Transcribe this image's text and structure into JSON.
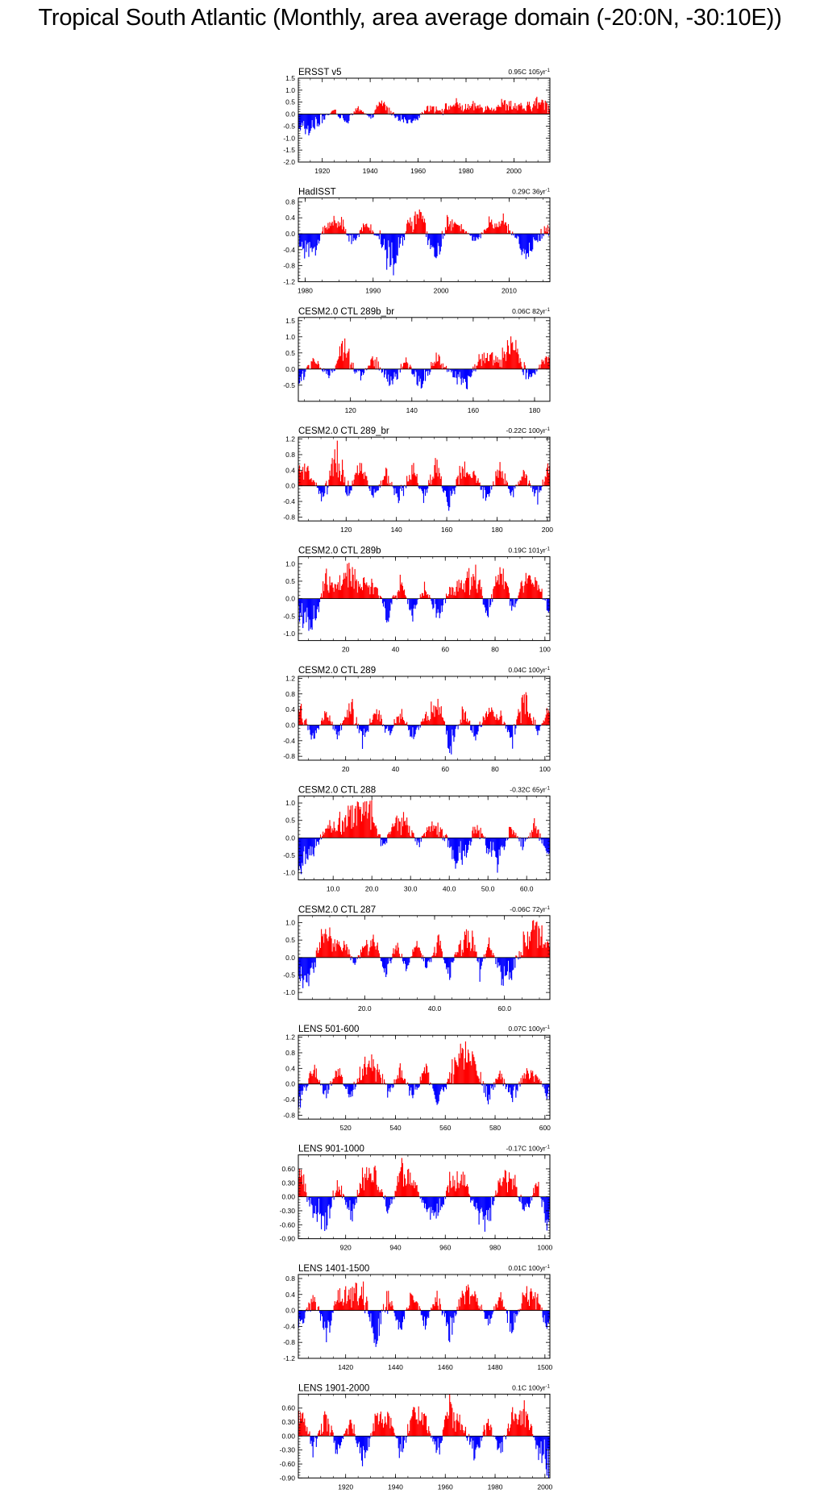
{
  "title": "Tropical South Atlantic (Monthly, area average domain (-20:0N, -30:10E))",
  "colors": {
    "positive": "#ff0000",
    "negative": "#0000ff",
    "line": "#000000"
  },
  "chart_data": [
    {
      "type": "bar",
      "title": "ERSST v5",
      "trend": "0.95C 105yr",
      "trend_unit_sup": "-1",
      "xlim": [
        1910,
        2015
      ],
      "ylim": [
        -2.0,
        1.5
      ],
      "yticks": [
        -2.0,
        -1.5,
        -1.0,
        -0.5,
        0.0,
        0.5,
        1.0,
        1.5
      ],
      "ytick_labels": [
        "-2.0",
        "-1.5",
        "-1.0",
        "-0.5",
        "0.0",
        "0.5",
        "1.0",
        "1.5"
      ],
      "xticks": [
        1920,
        1940,
        1960,
        1980,
        2000
      ],
      "xtick_labels": [
        "1920",
        "1940",
        "1960",
        "1980",
        "2000"
      ],
      "x": [
        1910,
        1915,
        1920,
        1925,
        1930,
        1935,
        1940,
        1945,
        1950,
        1955,
        1960,
        1965,
        1970,
        1975,
        1980,
        1985,
        1990,
        1995,
        2000,
        2005,
        2010,
        2015
      ],
      "values": [
        -0.5,
        -0.8,
        -0.3,
        0.2,
        -0.4,
        0.3,
        -0.2,
        0.6,
        -0.1,
        -0.3,
        -0.2,
        0.4,
        0.2,
        0.5,
        0.3,
        0.4,
        0.3,
        0.5,
        0.4,
        0.3,
        0.6,
        0.4
      ]
    },
    {
      "type": "bar",
      "title": "HadISST",
      "trend": "0.29C 36yr",
      "trend_unit_sup": "-1",
      "xlim": [
        1979,
        2016
      ],
      "ylim": [
        -1.2,
        0.9
      ],
      "yticks": [
        -1.2,
        -0.8,
        -0.4,
        0.0,
        0.4,
        0.8
      ],
      "ytick_labels": [
        "-1.2",
        "-0.8",
        "-0.4",
        "0.0",
        "0.4",
        "0.8"
      ],
      "xticks": [
        1980,
        1990,
        2000,
        2010
      ],
      "xtick_labels": [
        "1980",
        "1990",
        "2000",
        "2010"
      ],
      "x": [
        1979,
        1981,
        1983,
        1985,
        1987,
        1989,
        1991,
        1993,
        1995,
        1997,
        1999,
        2001,
        2003,
        2005,
        2007,
        2009,
        2011,
        2013,
        2015
      ],
      "values": [
        -0.3,
        -0.6,
        0.2,
        0.5,
        -0.3,
        0.3,
        -0.2,
        -0.9,
        0.2,
        0.6,
        -0.8,
        0.3,
        0.2,
        -0.3,
        0.3,
        0.4,
        -0.2,
        -0.7,
        0.1
      ]
    },
    {
      "type": "bar",
      "title": "CESM2.0 CTL 289b_br",
      "trend": "0.06C 82yr",
      "trend_unit_sup": "-1",
      "xlim": [
        103,
        185
      ],
      "ylim": [
        -1.0,
        1.6
      ],
      "yticks": [
        -0.5,
        0.0,
        0.5,
        1.0,
        1.5
      ],
      "ytick_labels": [
        "-0.5",
        "0.0",
        "0.5",
        "1.0",
        "1.5"
      ],
      "xticks": [
        120,
        140,
        160,
        180
      ],
      "xtick_labels": [
        "120",
        "140",
        "160",
        "180"
      ],
      "x": [
        103,
        108,
        113,
        118,
        123,
        128,
        133,
        138,
        143,
        148,
        153,
        158,
        163,
        168,
        173,
        178,
        183
      ],
      "values": [
        -0.6,
        0.4,
        -0.3,
        0.8,
        -0.3,
        0.4,
        -0.7,
        0.3,
        -0.6,
        0.4,
        -0.2,
        -0.5,
        0.6,
        0.3,
        1.0,
        -0.4,
        0.3
      ]
    },
    {
      "type": "bar",
      "title": "CESM2.0 CTL 289_br",
      "trend": "-0.22C 100yr",
      "trend_unit_sup": "-1",
      "xlim": [
        101,
        201
      ],
      "ylim": [
        -0.9,
        1.25
      ],
      "yticks": [
        -0.8,
        -0.4,
        0.0,
        0.4,
        0.8,
        1.2
      ],
      "ytick_labels": [
        "-0.8",
        "-0.4",
        "0.0",
        "0.4",
        "0.8",
        "1.2"
      ],
      "xticks": [
        120,
        140,
        160,
        180,
        200
      ],
      "xtick_labels": [
        "120",
        "140",
        "160",
        "180",
        "200"
      ],
      "x": [
        101,
        106,
        111,
        116,
        121,
        126,
        131,
        136,
        141,
        146,
        151,
        156,
        161,
        166,
        171,
        176,
        181,
        186,
        191,
        196,
        200
      ],
      "values": [
        0.5,
        0.3,
        -0.4,
        1.0,
        -0.2,
        0.6,
        -0.3,
        0.4,
        -0.5,
        0.6,
        -0.3,
        0.6,
        -0.6,
        0.5,
        0.3,
        -0.4,
        0.6,
        -0.3,
        0.4,
        -0.4,
        0.5
      ]
    },
    {
      "type": "bar",
      "title": "CESM2.0 CTL 289b",
      "trend": "0.19C 101yr",
      "trend_unit_sup": "-1",
      "xlim": [
        1,
        102
      ],
      "ylim": [
        -1.2,
        1.2
      ],
      "yticks": [
        -1.0,
        -0.5,
        0.0,
        0.5,
        1.0
      ],
      "ytick_labels": [
        "-1.0",
        "-0.5",
        "0.0",
        "0.5",
        "1.0"
      ],
      "xticks": [
        20,
        40,
        60,
        80,
        100
      ],
      "xtick_labels": [
        "20",
        "40",
        "60",
        "80",
        "100"
      ],
      "x": [
        2,
        7,
        12,
        17,
        22,
        27,
        32,
        37,
        42,
        47,
        52,
        57,
        62,
        67,
        72,
        77,
        82,
        87,
        92,
        97,
        101
      ],
      "values": [
        -0.5,
        -0.9,
        0.6,
        0.4,
        0.8,
        0.5,
        0.4,
        -0.6,
        0.6,
        -0.5,
        0.4,
        -0.6,
        0.3,
        0.5,
        0.9,
        -0.4,
        1.0,
        -0.4,
        0.7,
        0.5,
        -0.3
      ]
    },
    {
      "type": "bar",
      "title": "CESM2.0 CTL 289",
      "trend": "0.04C 100yr",
      "trend_unit_sup": "-1",
      "xlim": [
        1,
        102
      ],
      "ylim": [
        -0.9,
        1.25
      ],
      "yticks": [
        -0.8,
        -0.4,
        0.0,
        0.4,
        0.8,
        1.2
      ],
      "ytick_labels": [
        "-0.8",
        "-0.4",
        "0.0",
        "0.4",
        "0.8",
        "1.2"
      ],
      "xticks": [
        20,
        40,
        60,
        80,
        100
      ],
      "xtick_labels": [
        "20",
        "40",
        "60",
        "80",
        "100"
      ],
      "x": [
        2,
        7,
        12,
        17,
        22,
        27,
        32,
        37,
        42,
        47,
        52,
        57,
        62,
        67,
        72,
        77,
        82,
        87,
        92,
        97,
        101
      ],
      "values": [
        0.5,
        -0.4,
        0.4,
        -0.3,
        0.6,
        -0.5,
        0.5,
        -0.3,
        0.4,
        -0.4,
        0.2,
        0.7,
        -0.7,
        0.5,
        -0.4,
        0.5,
        0.3,
        -0.4,
        0.8,
        -0.3,
        0.4
      ]
    },
    {
      "type": "bar",
      "title": "CESM2.0 CTL 288",
      "trend": "-0.32C 65yr",
      "trend_unit_sup": "-1",
      "xlim": [
        1,
        66
      ],
      "ylim": [
        -1.2,
        1.2
      ],
      "yticks": [
        -1.0,
        -0.5,
        0.0,
        0.5,
        1.0
      ],
      "ytick_labels": [
        "-1.0",
        "-0.5",
        "0.0",
        "0.5",
        "1.0"
      ],
      "xticks": [
        10,
        20,
        30,
        40,
        50,
        60
      ],
      "xtick_labels": [
        "10.0",
        "20.0",
        "30.0",
        "40.0",
        "50.0",
        "60.0"
      ],
      "x": [
        2,
        5,
        8,
        11,
        14,
        17,
        20,
        23,
        26,
        29,
        32,
        35,
        38,
        41,
        44,
        47,
        50,
        53,
        56,
        59,
        62,
        65
      ],
      "values": [
        -0.9,
        -0.4,
        0.3,
        0.5,
        0.7,
        1.0,
        0.8,
        -0.3,
        0.6,
        0.5,
        -0.3,
        0.4,
        0.3,
        -0.6,
        -0.8,
        0.5,
        -0.4,
        -0.9,
        0.4,
        -0.3,
        0.5,
        -0.4
      ]
    },
    {
      "type": "bar",
      "title": "CESM2.0 CTL 287",
      "trend": "-0.06C 72yr",
      "trend_unit_sup": "-1",
      "xlim": [
        1,
        73
      ],
      "ylim": [
        -1.2,
        1.2
      ],
      "yticks": [
        -1.0,
        -0.5,
        0.0,
        0.5,
        1.0
      ],
      "ytick_labels": [
        "-1.0",
        "-0.5",
        "0.0",
        "0.5",
        "1.0"
      ],
      "xticks": [
        20,
        40,
        60
      ],
      "xtick_labels": [
        "20.0",
        "40.0",
        "60.0"
      ],
      "x": [
        2,
        5,
        8,
        11,
        14,
        17,
        20,
        23,
        26,
        29,
        32,
        35,
        38,
        41,
        44,
        47,
        50,
        53,
        56,
        59,
        62,
        65,
        68,
        71
      ],
      "values": [
        -0.8,
        -0.5,
        0.8,
        0.5,
        0.6,
        -0.3,
        0.4,
        0.6,
        -0.5,
        0.4,
        -0.3,
        0.5,
        -0.4,
        0.6,
        -0.6,
        0.4,
        0.9,
        -0.5,
        0.6,
        -0.7,
        -0.6,
        0.4,
        0.9,
        0.6
      ]
    },
    {
      "type": "bar",
      "title": "LENS 501-600",
      "trend": "0.07C 100yr",
      "trend_unit_sup": "-1",
      "xlim": [
        501,
        602
      ],
      "ylim": [
        -0.9,
        1.25
      ],
      "yticks": [
        -0.8,
        -0.4,
        0.0,
        0.4,
        0.8,
        1.2
      ],
      "ytick_labels": [
        "-0.8",
        "-0.4",
        "0.0",
        "0.4",
        "0.8",
        "1.2"
      ],
      "xticks": [
        520,
        540,
        560,
        580,
        600
      ],
      "xtick_labels": [
        "520",
        "540",
        "560",
        "580",
        "600"
      ],
      "x": [
        502,
        507,
        512,
        517,
        522,
        527,
        532,
        537,
        542,
        547,
        552,
        557,
        562,
        567,
        572,
        577,
        582,
        587,
        592,
        597,
        601
      ],
      "values": [
        -0.5,
        0.5,
        -0.3,
        0.4,
        -0.4,
        0.5,
        0.6,
        -0.3,
        0.4,
        -0.4,
        0.5,
        -0.6,
        0.3,
        1.0,
        0.6,
        -0.4,
        0.3,
        -0.5,
        0.4,
        0.3,
        -0.4
      ]
    },
    {
      "type": "bar",
      "title": "LENS 901-1000",
      "trend": "-0.17C 100yr",
      "trend_unit_sup": "-1",
      "xlim": [
        901,
        1002
      ],
      "ylim": [
        -0.9,
        0.9
      ],
      "yticks": [
        -0.9,
        -0.6,
        -0.3,
        0.0,
        0.3,
        0.6
      ],
      "ytick_labels": [
        "-0.90",
        "-0.60",
        "-0.30",
        "0.00",
        "0.30",
        "0.60"
      ],
      "xticks": [
        920,
        940,
        960,
        980,
        1000
      ],
      "xtick_labels": [
        "920",
        "940",
        "960",
        "980",
        "1000"
      ],
      "x": [
        902,
        907,
        912,
        917,
        922,
        927,
        932,
        937,
        942,
        947,
        952,
        957,
        962,
        967,
        972,
        977,
        982,
        987,
        992,
        997,
        1001
      ],
      "values": [
        0.7,
        -0.4,
        -0.6,
        0.4,
        -0.5,
        0.5,
        0.5,
        -0.4,
        0.6,
        0.4,
        -0.3,
        -0.5,
        0.4,
        0.5,
        -0.3,
        -0.6,
        0.4,
        0.5,
        -0.4,
        0.3,
        -0.6
      ]
    },
    {
      "type": "bar",
      "title": "LENS 1401-1500",
      "trend": "0.01C 100yr",
      "trend_unit_sup": "-1",
      "xlim": [
        1401,
        1502
      ],
      "ylim": [
        -1.2,
        0.9
      ],
      "yticks": [
        -1.2,
        -0.8,
        -0.4,
        0.0,
        0.4,
        0.8
      ],
      "ytick_labels": [
        "-1.2",
        "-0.8",
        "-0.4",
        "0.0",
        "0.4",
        "0.8"
      ],
      "xticks": [
        1420,
        1440,
        1460,
        1480,
        1500
      ],
      "xtick_labels": [
        "1420",
        "1440",
        "1460",
        "1480",
        "1500"
      ],
      "x": [
        1402,
        1407,
        1412,
        1417,
        1422,
        1427,
        1432,
        1437,
        1442,
        1447,
        1452,
        1457,
        1462,
        1467,
        1472,
        1477,
        1482,
        1487,
        1492,
        1497,
        1501
      ],
      "values": [
        -0.5,
        0.4,
        -0.7,
        0.4,
        0.5,
        0.6,
        -0.9,
        0.4,
        -0.5,
        0.5,
        -0.4,
        0.4,
        -0.7,
        0.5,
        0.5,
        -0.4,
        0.4,
        -0.6,
        0.5,
        0.4,
        -0.5
      ]
    },
    {
      "type": "bar",
      "title": "LENS 1901-2000",
      "trend": "0.1C 100yr",
      "trend_unit_sup": "-1",
      "xlim": [
        1901,
        2002
      ],
      "ylim": [
        -0.9,
        0.9
      ],
      "yticks": [
        -0.9,
        -0.6,
        -0.3,
        0.0,
        0.3,
        0.6
      ],
      "ytick_labels": [
        "-0.90",
        "-0.60",
        "-0.30",
        "0.00",
        "0.30",
        "0.60"
      ],
      "xticks": [
        1920,
        1940,
        1960,
        1980,
        2000
      ],
      "xtick_labels": [
        "1920",
        "1940",
        "1960",
        "1980",
        "2000"
      ],
      "x": [
        1902,
        1907,
        1912,
        1917,
        1922,
        1927,
        1932,
        1937,
        1942,
        1947,
        1952,
        1957,
        1962,
        1967,
        1972,
        1977,
        1982,
        1987,
        1992,
        1997,
        2001
      ],
      "values": [
        0.6,
        -0.3,
        0.5,
        -0.4,
        0.4,
        -0.6,
        0.4,
        0.5,
        -0.5,
        0.6,
        0.4,
        -0.4,
        0.7,
        0.3,
        -0.5,
        0.4,
        -0.4,
        0.5,
        0.6,
        -0.3,
        -0.7
      ]
    }
  ]
}
